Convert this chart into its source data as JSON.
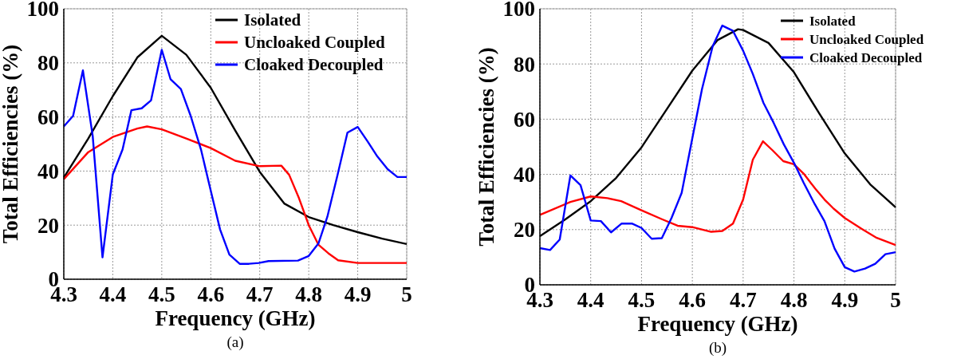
{
  "chart_data": [
    {
      "type": "line",
      "xlabel": "Frequency (GHz)",
      "ylabel": "Total Efficiencies (%)",
      "annotations": [
        "(a)"
      ],
      "xlim": [
        4.3,
        5
      ],
      "ylim": [
        0,
        100
      ],
      "xticks": [
        4.3,
        4.4,
        4.5,
        4.6,
        4.7,
        4.8,
        4.9,
        5
      ],
      "yticks": [
        0,
        20,
        40,
        60,
        80,
        100
      ],
      "grid": true,
      "legend": "top right",
      "marker": "none",
      "line_style": "solid",
      "series": [
        {
          "name": "Isolated",
          "color": "#000000",
          "x": [
            4.3,
            4.35,
            4.4,
            4.45,
            4.5,
            4.55,
            4.6,
            4.65,
            4.7,
            4.75,
            4.8,
            4.85,
            4.9,
            4.95,
            5
          ],
          "values": [
            37.6,
            52,
            67.7,
            82,
            90,
            83,
            70.8,
            55,
            39.7,
            28,
            23,
            20,
            17.4,
            15,
            13
          ]
        },
        {
          "name": "Uncloaked Coupled",
          "color": "#ff0000",
          "x": [
            4.3,
            4.35,
            4.4,
            4.45,
            4.47,
            4.5,
            4.55,
            4.6,
            4.65,
            4.7,
            4.744,
            4.76,
            4.78,
            4.8,
            4.82,
            4.84,
            4.86,
            4.9,
            5
          ],
          "values": [
            37,
            47,
            52.6,
            55.7,
            56.5,
            55.4,
            52,
            48.5,
            43.8,
            41.8,
            42,
            38.6,
            30,
            20,
            12.7,
            9.6,
            7,
            6,
            6
          ]
        },
        {
          "name": "Cloaked Decoupled",
          "color": "#0000ff",
          "x": [
            4.3,
            4.319,
            4.339,
            4.359,
            4.379,
            4.4,
            4.42,
            4.438,
            4.459,
            4.478,
            4.5,
            4.518,
            4.539,
            4.559,
            4.58,
            4.599,
            4.619,
            4.638,
            4.659,
            4.678,
            4.698,
            4.718,
            4.778,
            4.8,
            4.82,
            4.838,
            4.859,
            4.879,
            4.9,
            4.92,
            4.94,
            4.961,
            4.981,
            5
          ],
          "values": [
            56.5,
            60.4,
            77.2,
            53,
            8.1,
            38.7,
            48,
            62.5,
            63.2,
            66.1,
            84.8,
            73.9,
            70.3,
            60.4,
            48,
            33.5,
            18.4,
            9.1,
            5.7,
            5.7,
            6,
            6.7,
            6.9,
            8.6,
            13.3,
            23.1,
            38.7,
            54.2,
            56.3,
            51,
            45.4,
            40.7,
            37.8,
            37.8
          ]
        }
      ]
    },
    {
      "type": "line",
      "xlabel": "Frequency (GHz)",
      "ylabel": "Total Efficiencies (%)",
      "annotations": [
        "(b)"
      ],
      "xlim": [
        4.3,
        5
      ],
      "ylim": [
        0,
        100
      ],
      "xticks": [
        4.3,
        4.4,
        4.5,
        4.6,
        4.7,
        4.8,
        4.9,
        5
      ],
      "yticks": [
        0,
        20,
        40,
        60,
        80,
        100
      ],
      "grid": true,
      "legend": "top right",
      "marker": "none",
      "line_style": "solid",
      "series": [
        {
          "name": "Isolated",
          "color": "#000000",
          "x": [
            4.3,
            4.35,
            4.4,
            4.45,
            4.5,
            4.55,
            4.6,
            4.65,
            4.69,
            4.7,
            4.75,
            4.8,
            4.85,
            4.9,
            4.95,
            5
          ],
          "values": [
            17.6,
            23.7,
            30.3,
            38.7,
            49.8,
            63.7,
            77.6,
            88.7,
            92.6,
            92.3,
            87.6,
            77,
            62,
            47.6,
            36.4,
            28.1
          ]
        },
        {
          "name": "Uncloaked Coupled",
          "color": "#ff0000",
          "x": [
            4.3,
            4.36,
            4.4,
            4.433,
            4.46,
            4.5,
            4.541,
            4.571,
            4.6,
            4.637,
            4.659,
            4.68,
            4.7,
            4.719,
            4.739,
            4.758,
            4.779,
            4.8,
            4.819,
            4.842,
            4.86,
            4.878,
            4.9,
            4.933,
            4.963,
            5
          ],
          "values": [
            25.3,
            30,
            32,
            31.4,
            30.3,
            27,
            23.7,
            21.4,
            20.9,
            19.2,
            19.5,
            22.2,
            30.9,
            45.3,
            52,
            48.7,
            44.8,
            43.7,
            40.3,
            34.8,
            30.9,
            27.6,
            24.2,
            20.3,
            17,
            14.4
          ]
        },
        {
          "name": "Cloaked Decoupled",
          "color": "#0000ff",
          "x": [
            4.3,
            4.32,
            4.339,
            4.36,
            4.38,
            4.4,
            4.42,
            4.44,
            4.461,
            4.481,
            4.5,
            4.52,
            4.54,
            4.559,
            4.579,
            4.6,
            4.619,
            4.64,
            4.659,
            4.68,
            4.7,
            4.719,
            4.74,
            4.76,
            4.78,
            4.8,
            4.819,
            4.841,
            4.86,
            4.88,
            4.9,
            4.919,
            4.94,
            4.96,
            4.98,
            5
          ],
          "values": [
            13.3,
            12.6,
            16.4,
            39.6,
            36.1,
            23.3,
            23.1,
            19,
            22.2,
            22.2,
            20.6,
            16.7,
            16.9,
            24.2,
            33.3,
            53.1,
            70.9,
            86.4,
            93.9,
            92,
            84.8,
            76.4,
            65.9,
            58.7,
            50.9,
            44.2,
            37,
            29.2,
            23.1,
            13.1,
            6.4,
            4.8,
            5.9,
            7.6,
            11.1,
            11.8
          ]
        }
      ]
    }
  ]
}
